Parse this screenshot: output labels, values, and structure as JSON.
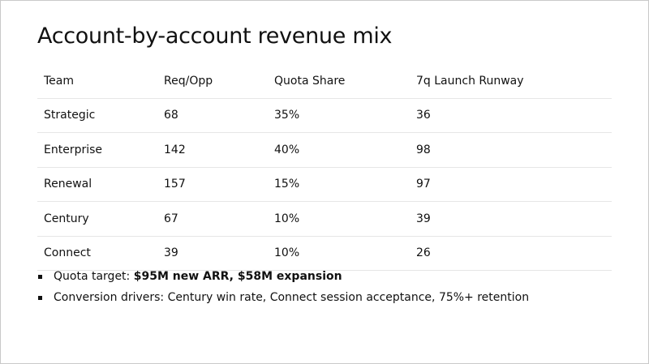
{
  "slide": {
    "title": "Account-by-account revenue mix"
  },
  "table": {
    "headers": [
      "Team",
      "Req/Opp",
      "Quota Share",
      "7q Launch Runway"
    ],
    "rows": [
      [
        "Strategic",
        "68",
        "35%",
        "36"
      ],
      [
        "Enterprise",
        "142",
        "40%",
        "98"
      ],
      [
        "Renewal",
        "157",
        "15%",
        "97"
      ],
      [
        "Century",
        "67",
        "10%",
        "39"
      ],
      [
        "Connect",
        "39",
        "10%",
        "26"
      ]
    ]
  },
  "bullets": [
    {
      "prefix": "Quota target: ",
      "emphasis": "$95M new ARR, $58M expansion"
    },
    {
      "text": "Conversion drivers: Century win rate, Connect session acceptance, 75%+ retention"
    }
  ]
}
